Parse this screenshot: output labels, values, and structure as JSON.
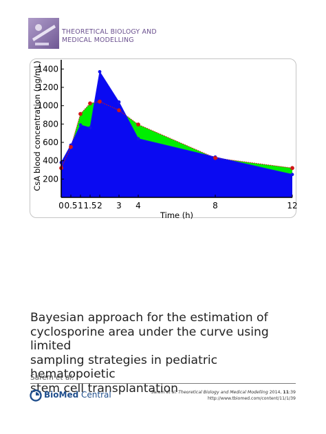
{
  "journal": {
    "name": "THEORETICAL BIOLOGY AND\nMEDICAL MODELLING",
    "logo_icon": "journal-cover-logo",
    "color": "#6a4f8e"
  },
  "article": {
    "title": "Bayesian approach for the estimation of\ncyclosporine area under the curve using limited\nsampling strategies in pediatric hematopoietic\nstem cell transplantation",
    "authors": "Sarem",
    "authors_suffix": "et al.",
    "citation_authors": "Sarem",
    "citation_etal": "et al.",
    "citation_journal": "Theoretical Biology and Medical Modelling",
    "citation_year_volume": "2014,",
    "citation_volume": "11",
    "citation_article": ":39",
    "url": "http://www.tbiomed.com/content/11/1/39"
  },
  "publisher": {
    "name_bold": "BioMed",
    "name_rest": " Central",
    "icon": "biomed-central-logo",
    "color": "#1f4e8c"
  },
  "chart_data": {
    "type": "area",
    "title": "",
    "xlabel": "Time (h)",
    "ylabel": "CsA blood concentration (ng/mL)",
    "x_tick_labels": [
      "0",
      "0.5",
      "1",
      "1.5",
      "2",
      "3",
      "4",
      "8",
      "12"
    ],
    "x_ticks": [
      0,
      0.5,
      1,
      1.5,
      2,
      3,
      4,
      8,
      12
    ],
    "y_tick_labels": [
      "200",
      "400",
      "600",
      "800",
      "1000",
      "1200",
      "1400"
    ],
    "y_ticks": [
      200,
      400,
      600,
      800,
      1000,
      1200,
      1400
    ],
    "xlim": [
      0,
      12
    ],
    "ylim": [
      0,
      1500
    ],
    "grid": false,
    "series": [
      {
        "color": "#d01818",
        "area_color": "#00ee00",
        "line_style": "dotted",
        "x": [
          0,
          0.5,
          1,
          1.5,
          2,
          3,
          4,
          8,
          12
        ],
        "y": [
          320,
          550,
          910,
          1025,
          1045,
          950,
          795,
          430,
          320
        ]
      },
      {
        "color": "#1414ec",
        "area_color": "#0a0af2",
        "line_style": "solid",
        "x": [
          0,
          0.5,
          1,
          1.5,
          2,
          3,
          4,
          8,
          12
        ],
        "y": [
          380,
          570,
          790,
          760,
          1370,
          1040,
          640,
          440,
          250
        ]
      }
    ]
  }
}
